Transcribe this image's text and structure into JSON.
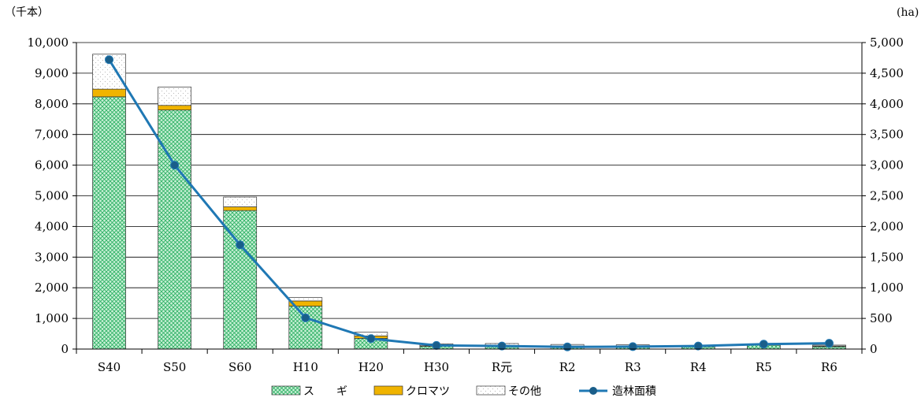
{
  "chart_data": {
    "type": "bar",
    "stacked": true,
    "categories": [
      "S40",
      "S50",
      "S60",
      "H10",
      "H20",
      "H30",
      "R元",
      "R2",
      "R3",
      "R4",
      "R5",
      "R6"
    ],
    "series": [
      {
        "name": "ス　　ギ",
        "axis": "left",
        "kind": "bar",
        "color": "#2ecc71",
        "pattern": "crosshatch",
        "values": [
          8230,
          7800,
          4520,
          1400,
          350,
          90,
          100,
          80,
          70,
          80,
          130,
          80
        ]
      },
      {
        "name": "クロマツ",
        "axis": "left",
        "kind": "bar",
        "color": "#f0b400",
        "values": [
          250,
          150,
          120,
          170,
          80,
          20,
          20,
          20,
          20,
          10,
          10,
          20
        ]
      },
      {
        "name": "その他",
        "axis": "left",
        "kind": "bar",
        "color": "#ffffff",
        "pattern": "dots",
        "values": [
          1140,
          600,
          320,
          110,
          120,
          60,
          60,
          50,
          50,
          30,
          10,
          30
        ]
      },
      {
        "name": "造林面積",
        "axis": "right",
        "kind": "line",
        "color": "#1f78b4",
        "values": [
          4720,
          3000,
          1700,
          510,
          170,
          60,
          50,
          35,
          40,
          50,
          80,
          95
        ]
      }
    ],
    "y_left": {
      "unit": "（千本）",
      "min": 0,
      "max": 10000,
      "step": 1000,
      "ticks": [
        "0",
        "1,000",
        "2,000",
        "3,000",
        "4,000",
        "5,000",
        "6,000",
        "7,000",
        "8,000",
        "9,000",
        "10,000"
      ]
    },
    "y_right": {
      "unit": "(ha)",
      "min": 0,
      "max": 5000,
      "step": 500,
      "ticks": [
        "0",
        "500",
        "1,000",
        "1,500",
        "2,000",
        "2,500",
        "3,000",
        "3,500",
        "4,000",
        "4,500",
        "5,000"
      ]
    },
    "grid": true,
    "legend_position": "bottom-center"
  }
}
